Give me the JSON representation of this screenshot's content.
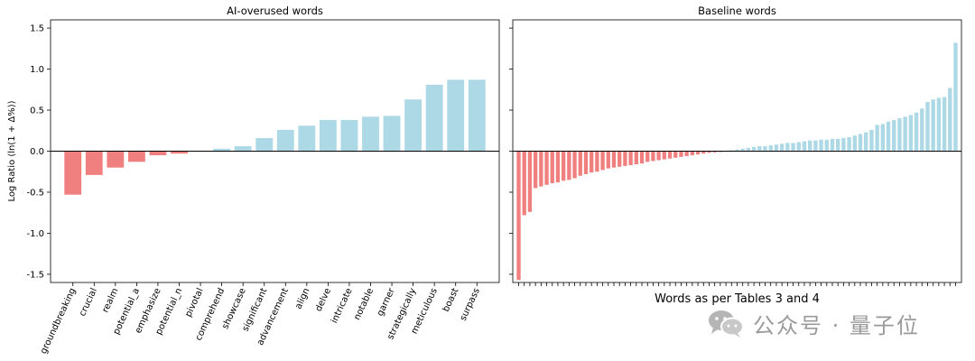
{
  "chart_data": [
    {
      "type": "bar",
      "title": "AI-overused words",
      "ylabel": "Log Ratio (ln(1 + Δ%))",
      "xlabel": "",
      "ylim": [
        -1.6,
        1.6
      ],
      "yticks": [
        -1.5,
        -1.0,
        -0.5,
        0.0,
        0.5,
        1.0,
        1.5
      ],
      "grid": false,
      "zero_line": true,
      "categories": [
        "groundbreaking",
        "crucial",
        "realm",
        "potential_a",
        "emphasize",
        "potential_n",
        "pivotal",
        "comprehend",
        "showcase",
        "significant",
        "advancement",
        "align",
        "delve",
        "intricate",
        "notable",
        "garner",
        "strategically",
        "meticulous",
        "boast",
        "surpass"
      ],
      "values": [
        -0.53,
        -0.29,
        -0.2,
        -0.13,
        -0.05,
        -0.03,
        0.0,
        0.03,
        0.06,
        0.16,
        0.26,
        0.31,
        0.38,
        0.38,
        0.42,
        0.43,
        0.63,
        0.81,
        0.87,
        0.87
      ],
      "colors": {
        "negative": "#f08080",
        "positive": "#add8e6"
      }
    },
    {
      "type": "bar",
      "title": "Baseline words",
      "xlabel": "Words as per Tables 3 and 4",
      "ylabel": "",
      "ylim": [
        -1.6,
        1.6
      ],
      "grid": false,
      "zero_line": true,
      "tick_labels_shown": false,
      "values": [
        -1.57,
        -0.78,
        -0.74,
        -0.45,
        -0.43,
        -0.41,
        -0.39,
        -0.38,
        -0.36,
        -0.35,
        -0.33,
        -0.3,
        -0.28,
        -0.26,
        -0.25,
        -0.23,
        -0.21,
        -0.2,
        -0.19,
        -0.18,
        -0.17,
        -0.16,
        -0.15,
        -0.13,
        -0.12,
        -0.11,
        -0.1,
        -0.09,
        -0.08,
        -0.07,
        -0.06,
        -0.05,
        -0.04,
        -0.03,
        -0.02,
        -0.015,
        -0.01,
        -0.005,
        0.01,
        0.02,
        0.03,
        0.04,
        0.05,
        0.06,
        0.06,
        0.07,
        0.08,
        0.09,
        0.1,
        0.1,
        0.11,
        0.12,
        0.13,
        0.13,
        0.14,
        0.14,
        0.15,
        0.15,
        0.16,
        0.17,
        0.19,
        0.21,
        0.23,
        0.26,
        0.32,
        0.33,
        0.36,
        0.38,
        0.4,
        0.42,
        0.44,
        0.47,
        0.52,
        0.6,
        0.63,
        0.65,
        0.66,
        0.77,
        1.32
      ],
      "colors": {
        "negative": "#f08080",
        "positive": "#add8e6"
      }
    }
  ],
  "watermark": {
    "text": "公众号 · 量子位",
    "icon": "wechat-icon"
  }
}
